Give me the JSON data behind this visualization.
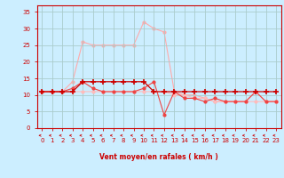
{
  "xlabel": "Vent moyen/en rafales ( km/h )",
  "background_color": "#cceeff",
  "grid_color": "#aacccc",
  "xlim": [
    -0.5,
    23.5
  ],
  "ylim": [
    0,
    37
  ],
  "xticks": [
    0,
    1,
    2,
    3,
    4,
    5,
    6,
    7,
    8,
    9,
    10,
    11,
    12,
    13,
    14,
    15,
    16,
    17,
    18,
    19,
    20,
    21,
    22,
    23
  ],
  "yticks": [
    0,
    5,
    10,
    15,
    20,
    25,
    30,
    35
  ],
  "line1_x": [
    0,
    1,
    2,
    3,
    4,
    5,
    6,
    7,
    8,
    9,
    10,
    11,
    12,
    13,
    14,
    15,
    16,
    17,
    18,
    19,
    20,
    21,
    22,
    23
  ],
  "line1_y": [
    11,
    11,
    11,
    11,
    14,
    14,
    14,
    14,
    14,
    14,
    14,
    11,
    11,
    11,
    11,
    11,
    11,
    11,
    11,
    11,
    11,
    11,
    11,
    11
  ],
  "line1_color": "#cc0000",
  "line2_x": [
    0,
    1,
    2,
    3,
    4,
    5,
    6,
    7,
    8,
    9,
    10,
    11,
    12,
    13,
    14,
    15,
    16,
    17,
    18,
    19,
    20,
    21,
    22,
    23
  ],
  "line2_y": [
    11,
    11,
    11,
    12,
    14,
    12,
    11,
    11,
    11,
    11,
    12,
    14,
    4,
    11,
    9,
    9,
    8,
    9,
    8,
    8,
    8,
    11,
    8,
    8
  ],
  "line2_color": "#ee4444",
  "line3_x": [
    0,
    1,
    2,
    3,
    4,
    5,
    6,
    7,
    8,
    9,
    10,
    11,
    12,
    13,
    14,
    15,
    16,
    17,
    18,
    19,
    20,
    21,
    22,
    23
  ],
  "line3_y": [
    11,
    11,
    11,
    14,
    26,
    25,
    25,
    25,
    25,
    25,
    32,
    30,
    29,
    11,
    10,
    10,
    9,
    8,
    8,
    8,
    8,
    11,
    8,
    8
  ],
  "line3_color": "#ffaaaa",
  "line4_x": [
    0,
    1,
    2,
    3,
    4,
    5,
    6,
    7,
    8,
    9,
    10,
    11,
    12,
    13,
    14,
    15,
    16,
    17,
    18,
    19,
    20,
    21,
    22,
    23
  ],
  "line4_y": [
    11,
    11,
    11,
    11,
    11,
    11,
    11,
    11,
    11,
    11,
    11,
    11,
    11,
    10,
    10,
    9,
    9,
    8,
    8,
    8,
    8,
    8,
    8,
    8
  ],
  "line4_color": "#ffbbbb",
  "axis_color": "#cc0000",
  "tick_color": "#cc0000",
  "label_color": "#cc0000"
}
